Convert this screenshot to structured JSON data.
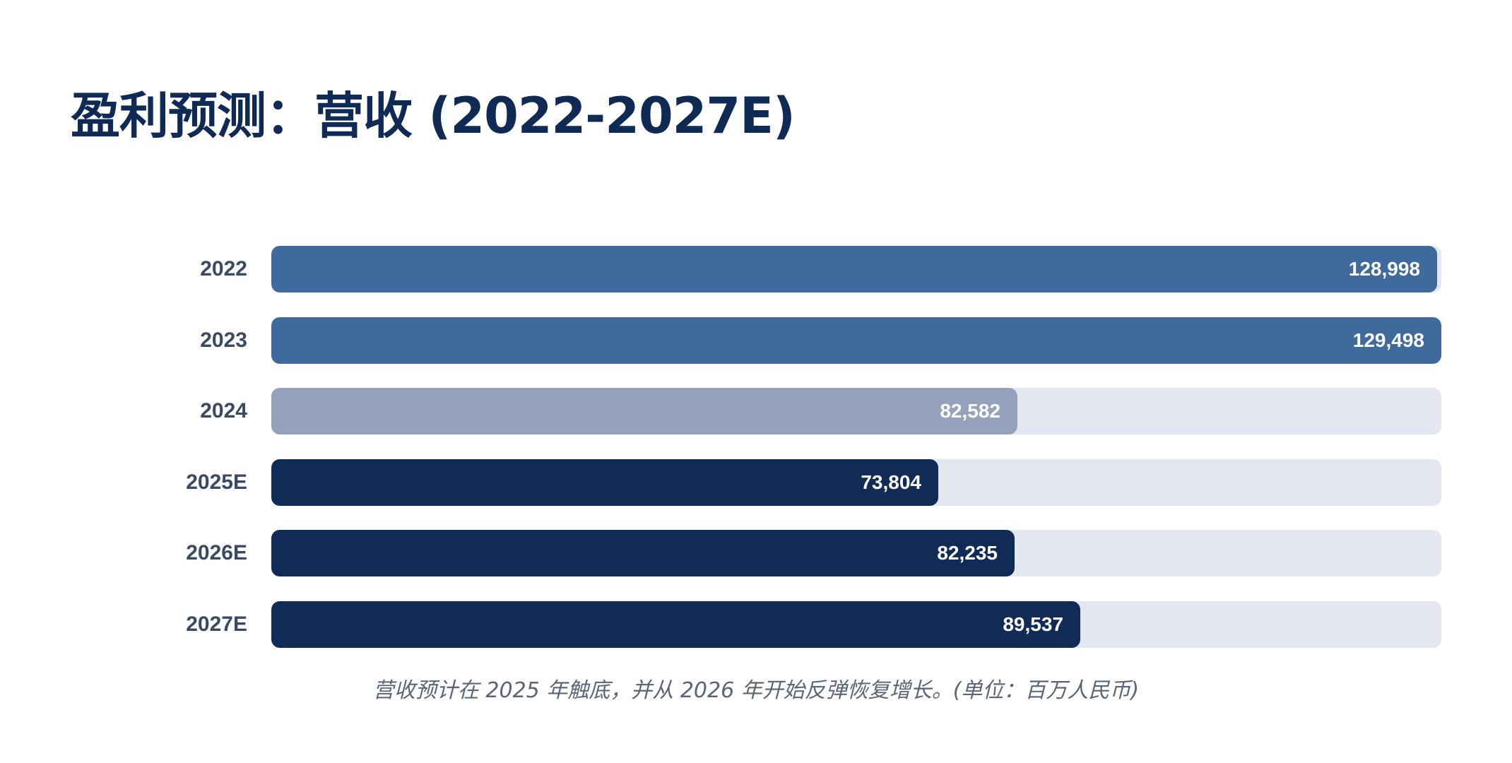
{
  "chart_data": {
    "type": "bar",
    "orientation": "horizontal",
    "title": "盈利预测：营收 (2022-2027E)",
    "categories": [
      "2022",
      "2023",
      "2024",
      "2025E",
      "2026E",
      "2027E"
    ],
    "values": [
      128998,
      129498,
      82582,
      73804,
      82235,
      89537
    ],
    "value_labels": [
      "128,998",
      "129,498",
      "82,582",
      "73,804",
      "82,235",
      "89,537"
    ],
    "xlim": [
      0,
      129498
    ],
    "bar_colors": [
      "#3e6a9c",
      "#3e6a9c",
      "#94a3bb",
      "#102c56",
      "#102c56",
      "#102c56"
    ],
    "track_color": "#e3e8f0",
    "footnote": "营收预计在 2025 年触底，并从 2026 年开始反弹恢复增长。(单位：百万人民币)",
    "xlabel": "",
    "ylabel": ""
  }
}
